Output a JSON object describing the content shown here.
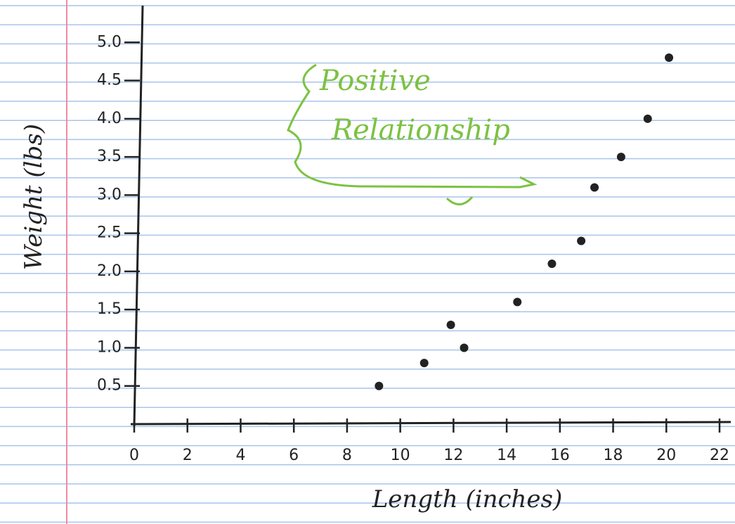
{
  "chart_data": {
    "type": "scatter",
    "annotation": [
      "Positive",
      "Relationship"
    ],
    "x_label": "Length (inches)",
    "y_label": "Weight (lbs)",
    "x": [
      9.2,
      10.9,
      11.9,
      12.4,
      14.4,
      15.7,
      16.8,
      17.3,
      18.3,
      19.3,
      20.1
    ],
    "values": [
      0.5,
      0.8,
      1.3,
      1.0,
      1.6,
      2.1,
      2.4,
      3.1,
      3.5,
      4.0,
      4.8
    ],
    "color": "#222222",
    "xlim": [
      0,
      22
    ],
    "xticks": [
      0,
      2,
      4,
      6,
      8,
      10,
      12,
      14,
      16,
      18,
      20,
      22
    ],
    "ylim": [
      0,
      5.5
    ],
    "yticks": [
      0.5,
      {
        "value": 1,
        "label": "1.0"
      },
      1.5,
      {
        "value": 2,
        "label": "2.0"
      },
      2.5,
      {
        "value": 3,
        "label": "3.0"
      },
      3.5,
      {
        "value": 4,
        "label": "4.0"
      },
      4.5,
      {
        "value": 5,
        "label": "5.0"
      }
    ]
  }
}
